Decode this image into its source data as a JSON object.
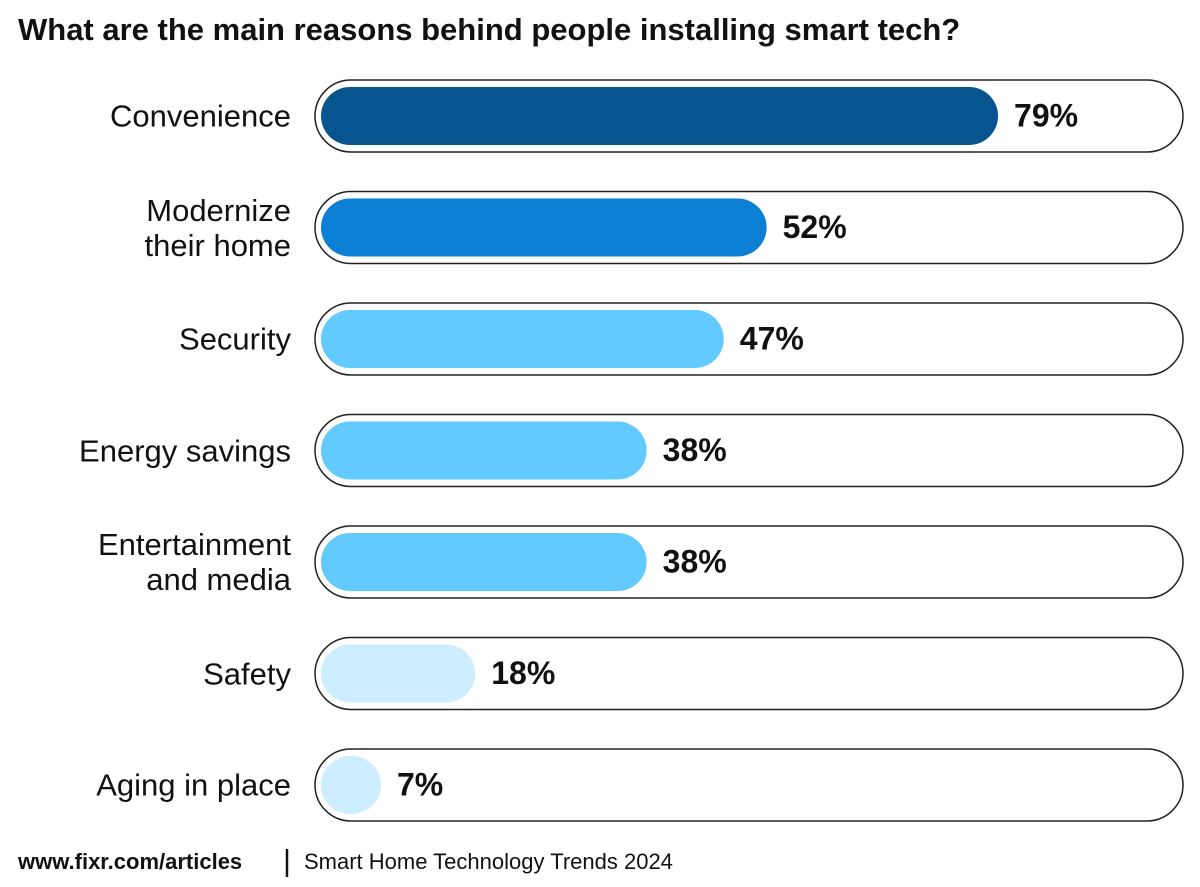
{
  "chart_data": {
    "type": "bar",
    "orientation": "horizontal",
    "title": "What are the main reasons behind people installing smart tech?",
    "categories": [
      "Convenience",
      "Modernize\ntheir home",
      "Security",
      "Energy savings",
      "Entertainment\nand media",
      "Safety",
      "Aging in place"
    ],
    "values": [
      79,
      52,
      47,
      38,
      38,
      18,
      7
    ],
    "value_labels": [
      "79%",
      "52%",
      "47%",
      "38%",
      "38%",
      "18%",
      "7%"
    ],
    "colors": [
      "#08548f",
      "#0a7fd4",
      "#63caff",
      "#63caff",
      "#63caff",
      "#cdeeff",
      "#cdeeff"
    ],
    "xlim": [
      0,
      100
    ],
    "source_url": "www.fixr.com/articles",
    "source_title": "Smart Home Technology Trends 2024"
  }
}
